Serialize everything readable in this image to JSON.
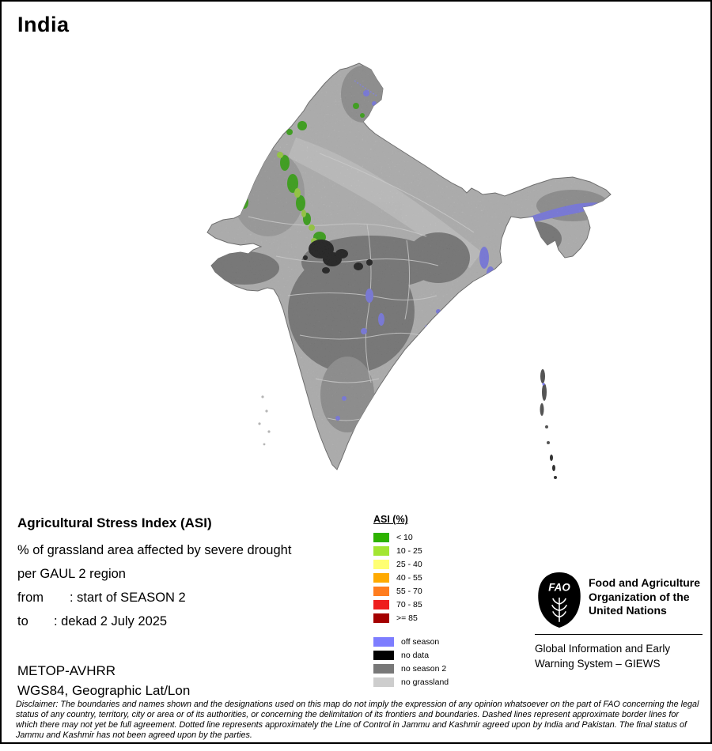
{
  "title": "India",
  "legend_block": {
    "heading": "Agricultural Stress Index (ASI)",
    "line1": "% of grassland area affected by severe drought",
    "line2": "per GAUL 2 region",
    "from_label": "from",
    "from_value": ": start of SEASON 2",
    "to_label": "to",
    "to_value": ": dekad 2 July 2025",
    "sensor": "METOP-AVHRR",
    "projection": "WGS84, Geographic Lat/Lon"
  },
  "asi_legend": {
    "title": "ASI (%)",
    "classes": [
      {
        "label": "< 10",
        "color": "#2db200"
      },
      {
        "label": "10 - 25",
        "color": "#a3e632"
      },
      {
        "label": "25 - 40",
        "color": "#ffff73"
      },
      {
        "label": "40 - 55",
        "color": "#ffaa00"
      },
      {
        "label": "55 - 70",
        "color": "#ff7d1f"
      },
      {
        "label": "70 - 85",
        "color": "#ee1e1e"
      },
      {
        "label": ">= 85",
        "color": "#a40000"
      }
    ],
    "extra_classes": [
      {
        "label": "off season",
        "color": "#7d7dff"
      },
      {
        "label": "no data",
        "color": "#000000"
      },
      {
        "label": "no season 2",
        "color": "#787878"
      },
      {
        "label": "no grassland",
        "color": "#cdcdcd"
      }
    ]
  },
  "fao": {
    "logo_text": "FAO",
    "org_name": "Food and Agriculture\nOrganization of the\nUnited Nations",
    "giews": "Global Information and Early\nWarning System – GIEWS"
  },
  "disclaimer": "Disclaimer: The boundaries and names shown and the designations used on this map do not imply the expression of any opinion whatsoever on the part of FAO concerning the legal status of any country, territory, city or area or of its authorities, or concerning the delimitation of its frontiers and boundaries. Dashed lines represent approximate border lines for which there may not yet be full agreement. Dotted line represents approximately the Line of Control in Jammu and Kashmir agreed upon by India and Pakistan. The final status of Jammu and Kashmir has not been agreed upon by the parties."
}
